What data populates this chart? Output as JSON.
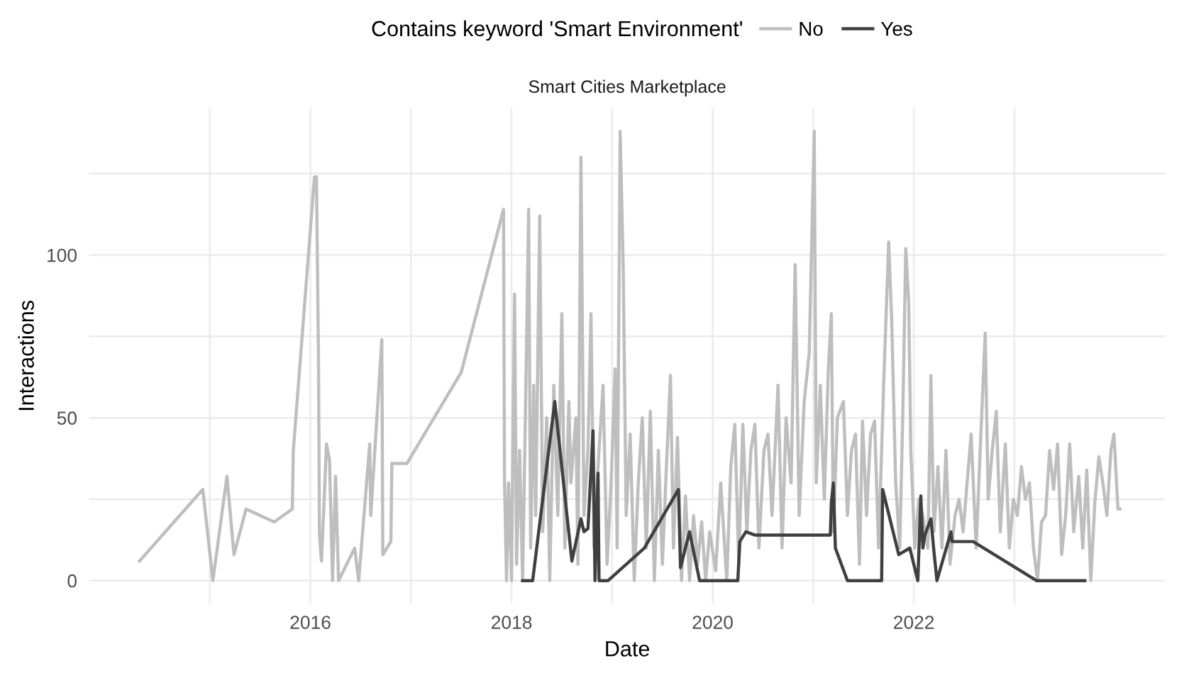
{
  "chart_data": {
    "type": "line",
    "title": "Smart Cities Marketplace",
    "xlabel": "Date",
    "ylabel": "Interactions",
    "legend_title": "Contains keyword 'Smart Environment'",
    "legend": "top",
    "grid": true,
    "xlim": [
      2013.8,
      2024.5
    ],
    "ylim": [
      -7,
      145
    ],
    "xticks": [
      {
        "value": 2015,
        "label": null
      },
      {
        "value": 2016,
        "label": "2016"
      },
      {
        "value": 2017,
        "label": null
      },
      {
        "value": 2018,
        "label": "2018"
      },
      {
        "value": 2019,
        "label": null
      },
      {
        "value": 2020,
        "label": "2020"
      },
      {
        "value": 2021,
        "label": null
      },
      {
        "value": 2022,
        "label": "2022"
      },
      {
        "value": 2023,
        "label": null
      }
    ],
    "yticks": [
      0,
      {
        "value": 25,
        "label": null
      },
      50,
      {
        "value": 75,
        "label": null
      },
      100,
      {
        "value": 125,
        "label": null
      }
    ],
    "series": [
      {
        "name": "No",
        "color": "#bebebe",
        "x": [
          2014.3,
          2014.93,
          2015.03,
          2015.17,
          2015.24,
          2015.36,
          2015.64,
          2015.82,
          2015.83,
          2016.04,
          2016.06,
          2016.08,
          2016.09,
          2016.11,
          2016.13,
          2016.16,
          2016.19,
          2016.22,
          2016.25,
          2016.28,
          2016.44,
          2016.48,
          2016.59,
          2016.6,
          2016.71,
          2016.72,
          2016.8,
          2016.81,
          2016.96,
          2017.5,
          2017.92,
          2017.93,
          2017.95,
          2017.97,
          2018.0,
          2018.03,
          2018.05,
          2018.08,
          2018.11,
          2018.14,
          2018.17,
          2018.19,
          2018.22,
          2018.24,
          2018.28,
          2018.31,
          2018.35,
          2018.38,
          2018.42,
          2018.46,
          2018.5,
          2018.53,
          2018.57,
          2018.59,
          2018.64,
          2018.66,
          2018.69,
          2018.72,
          2018.76,
          2018.79,
          2018.82,
          2018.86,
          2018.91,
          2018.95,
          2018.99,
          2019.03,
          2019.05,
          2019.08,
          2019.11,
          2019.14,
          2019.18,
          2019.22,
          2019.26,
          2019.3,
          2019.34,
          2019.38,
          2019.42,
          2019.46,
          2019.5,
          2019.54,
          2019.58,
          2019.61,
          2019.65,
          2019.69,
          2019.73,
          2019.77,
          2019.81,
          2019.85,
          2019.89,
          2019.93,
          2019.97,
          2020.03,
          2020.08,
          2020.14,
          2020.18,
          2020.22,
          2020.26,
          2020.3,
          2020.34,
          2020.38,
          2020.42,
          2020.46,
          2020.51,
          2020.55,
          2020.59,
          2020.65,
          2020.69,
          2020.73,
          2020.78,
          2020.82,
          2020.86,
          2020.91,
          2020.96,
          2021.01,
          2021.03,
          2021.07,
          2021.11,
          2021.15,
          2021.18,
          2021.2,
          2021.24,
          2021.3,
          2021.34,
          2021.38,
          2021.42,
          2021.46,
          2021.49,
          2021.53,
          2021.57,
          2021.61,
          2021.65,
          2021.7,
          2021.75,
          2021.78,
          2021.82,
          2021.86,
          2021.89,
          2021.92,
          2021.95,
          2021.97,
          2022.01,
          2022.05,
          2022.09,
          2022.14,
          2022.17,
          2022.2,
          2022.24,
          2022.28,
          2022.32,
          2022.36,
          2022.41,
          2022.45,
          2022.49,
          2022.53,
          2022.57,
          2022.62,
          2022.66,
          2022.71,
          2022.74,
          2022.78,
          2022.82,
          2022.86,
          2022.91,
          2022.95,
          2022.99,
          2023.03,
          2023.07,
          2023.11,
          2023.15,
          2023.19,
          2023.23,
          2023.27,
          2023.31,
          2023.35,
          2023.39,
          2023.43,
          2023.47,
          2023.51,
          2023.55,
          2023.59,
          2023.64,
          2023.68,
          2023.72,
          2023.76,
          2023.8,
          2023.84,
          2023.88,
          2023.92,
          2023.96,
          2023.99,
          2024.03,
          2024.05
        ],
        "values": [
          6,
          28,
          0,
          32,
          8,
          22,
          18,
          22,
          40,
          124,
          124,
          69,
          14,
          6,
          20,
          42,
          37,
          0,
          32,
          0,
          10,
          0,
          42,
          20,
          74,
          8,
          12,
          36,
          36,
          64,
          114,
          31,
          0,
          30,
          0,
          88,
          5,
          40,
          0,
          55,
          114,
          10,
          60,
          20,
          112,
          15,
          50,
          0,
          60,
          20,
          82,
          10,
          55,
          30,
          50,
          5,
          130,
          20,
          40,
          82,
          10,
          35,
          60,
          5,
          30,
          65,
          10,
          138,
          97,
          20,
          45,
          0,
          30,
          50,
          10,
          52,
          0,
          40,
          5,
          35,
          63,
          10,
          44,
          0,
          26,
          0,
          20,
          5,
          18,
          0,
          15,
          3,
          30,
          0,
          35,
          48,
          5,
          48,
          15,
          40,
          48,
          10,
          40,
          45,
          20,
          60,
          10,
          50,
          30,
          97,
          20,
          55,
          70,
          138,
          30,
          60,
          25,
          65,
          82,
          15,
          50,
          55,
          20,
          40,
          45,
          5,
          49,
          20,
          45,
          49,
          10,
          60,
          104,
          80,
          30,
          10,
          50,
          102,
          85,
          40,
          10,
          25,
          20,
          10,
          63,
          15,
          35,
          10,
          40,
          5,
          20,
          25,
          15,
          30,
          45,
          10,
          40,
          76,
          25,
          40,
          52,
          15,
          42,
          10,
          25,
          20,
          35,
          25,
          30,
          10,
          0,
          18,
          20,
          40,
          28,
          42,
          8,
          20,
          42,
          15,
          32,
          10,
          34,
          0,
          24,
          38,
          30,
          20,
          40,
          45,
          22,
          22
        ]
      },
      {
        "name": "Yes",
        "color": "#404040",
        "x": [
          2018.11,
          2018.21,
          2018.43,
          2018.6,
          2018.69,
          2018.72,
          2018.76,
          2018.81,
          2018.83,
          2018.86,
          2018.87,
          2018.96,
          2019.32,
          2019.66,
          2019.68,
          2019.77,
          2019.87,
          2020.25,
          2020.27,
          2020.33,
          2020.42,
          2021.17,
          2021.18,
          2021.2,
          2021.22,
          2021.34,
          2021.68,
          2021.69,
          2021.85,
          2021.96,
          2022.04,
          2022.07,
          2022.09,
          2022.11,
          2022.17,
          2022.2,
          2022.23,
          2022.37,
          2022.38,
          2022.59,
          2023.22,
          2023.7
        ],
        "values": [
          0,
          0,
          55,
          6,
          19,
          15,
          16,
          46,
          0,
          33,
          0,
          0,
          10,
          28,
          4,
          15,
          0,
          0,
          12,
          15,
          14,
          14,
          24,
          30,
          10,
          0,
          0,
          28,
          8,
          10,
          0,
          26,
          10,
          14,
          19,
          9,
          0,
          15,
          12,
          12,
          0,
          0
        ]
      }
    ]
  }
}
